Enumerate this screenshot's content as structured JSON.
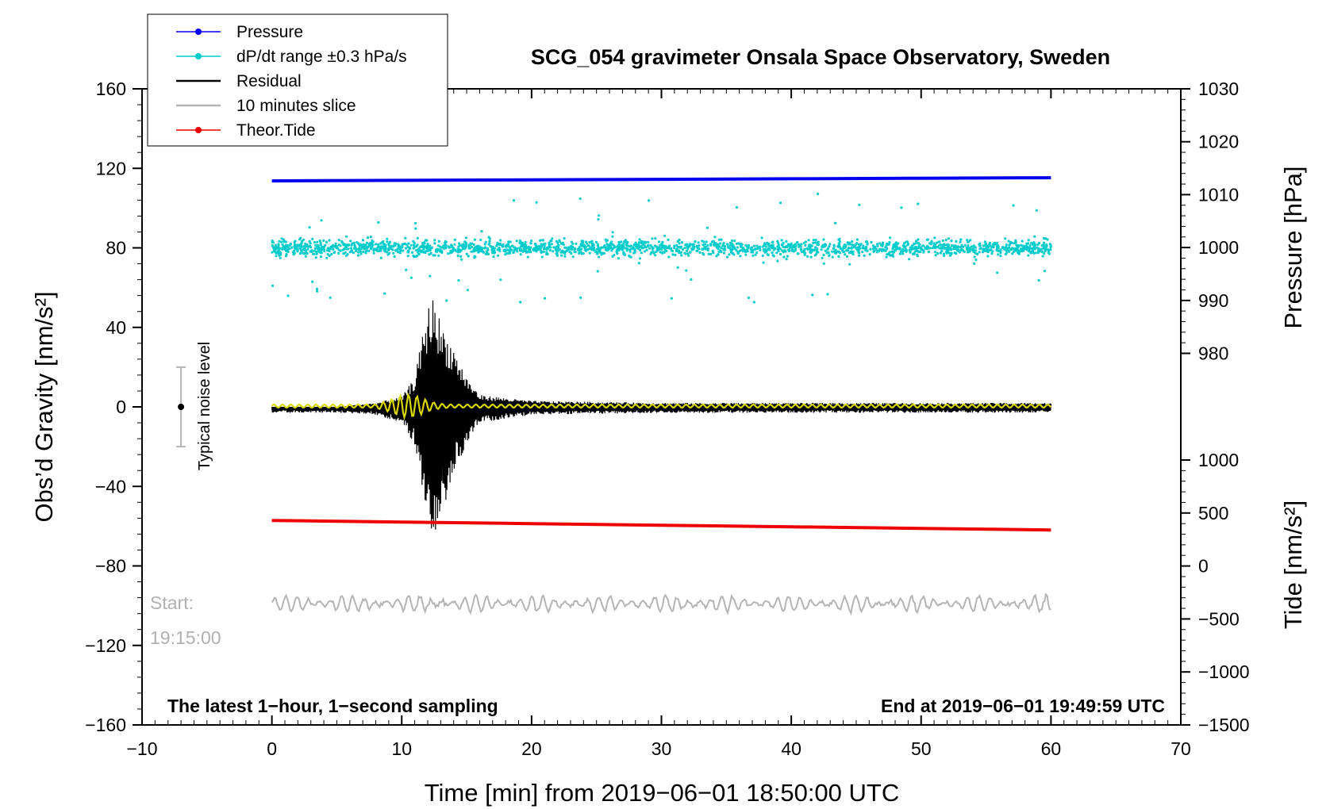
{
  "chart_data": {
    "type": "line",
    "title": "SCG_054 gravimeter Onsala Space Observatory, Sweden",
    "xlabel": "Time [min] from 2019−06−01 18:50:00 UTC",
    "ylabel_left": "Obs’d Gravity [nm/s²]",
    "ylabel_right_pressure": "Pressure [hPa]",
    "ylabel_right_tide": "Tide [nm/s²]",
    "xlim": [
      -10,
      70
    ],
    "ylim_left": [
      -160,
      160
    ],
    "ylim_pressure": [
      970,
      1030
    ],
    "ylim_tide": [
      -1500,
      1500
    ],
    "x_ticks": [
      "−10",
      "0",
      "10",
      "20",
      "30",
      "40",
      "50",
      "60",
      "70"
    ],
    "x_tick_values": [
      -10,
      0,
      10,
      20,
      30,
      40,
      50,
      60,
      70
    ],
    "y_left_ticks": [
      "160",
      "120",
      "80",
      "40",
      "0",
      "−40",
      "−80",
      "−120",
      "−160"
    ],
    "y_left_tick_values": [
      160,
      120,
      80,
      40,
      0,
      -40,
      -80,
      -120,
      -160
    ],
    "pressure_ticks": [
      "1030",
      "1020",
      "1010",
      "1000",
      "990",
      "980"
    ],
    "pressure_tick_values": [
      1030,
      1020,
      1010,
      1000,
      990,
      980
    ],
    "tide_ticks": [
      "1000",
      "500",
      "0",
      "−500",
      "−1000",
      "−1500"
    ],
    "tide_tick_values": [
      1000,
      500,
      0,
      -500,
      -1000,
      -1500
    ],
    "grid": false,
    "legend_position": "top-left",
    "series": [
      {
        "name": "Pressure",
        "color": "#0000ee",
        "axis": "pressure",
        "x": [
          0,
          10,
          20,
          30,
          40,
          50,
          60
        ],
        "values": [
          1012.6,
          1012.7,
          1012.8,
          1012.9,
          1013.0,
          1013.1,
          1013.2
        ]
      },
      {
        "name": "dP/dt range ±0.3 hPa/s",
        "color": "#00cccc",
        "axis": "left",
        "center": 80,
        "spread": 10
      },
      {
        "name": "Residual",
        "color": "#000000",
        "axis": "left",
        "x": [
          0,
          5,
          8,
          10,
          11,
          12,
          12.5,
          13,
          14,
          15,
          16,
          20,
          30,
          40,
          50,
          60
        ],
        "values": [
          0,
          0,
          2,
          5,
          15,
          50,
          57,
          42,
          30,
          15,
          6,
          3,
          2,
          2,
          2,
          2
        ],
        "envelope_min": [
          -3,
          -3,
          -4,
          -8,
          -20,
          -60,
          -76,
          -55,
          -35,
          -18,
          -8,
          -4,
          -3,
          -3,
          -3,
          -3
        ]
      },
      {
        "name": "10 minutes slice",
        "color": "#b4b4b4",
        "axis": "left",
        "center": -99,
        "spread": 4
      },
      {
        "name": "Theor.Tide",
        "color": "#ee0000",
        "axis": "tide",
        "x": [
          0,
          10,
          20,
          30,
          40,
          50,
          60
        ],
        "values": [
          430,
          415,
          400,
          385,
          370,
          355,
          340
        ]
      }
    ],
    "filtered_series": {
      "color": "#d8d800",
      "axis": "left"
    },
    "noise_bar": {
      "x": -7,
      "y": 0,
      "low": -20,
      "high": 20,
      "label": "Typical noise level"
    },
    "annotations": {
      "start_label": "Start:",
      "start_time": "19:15:00",
      "bottom_left": "The latest 1−hour, 1−second sampling",
      "bottom_right": "End at 2019−06−01 19:49:59 UTC"
    }
  },
  "colors": {
    "pressure": "#0000ee",
    "dpdt": "#00cccc",
    "residual": "#000000",
    "slice": "#b4b4b4",
    "tide": "#ee0000",
    "filtered": "#d8d800",
    "noise_bar": "#b4b4b4"
  }
}
